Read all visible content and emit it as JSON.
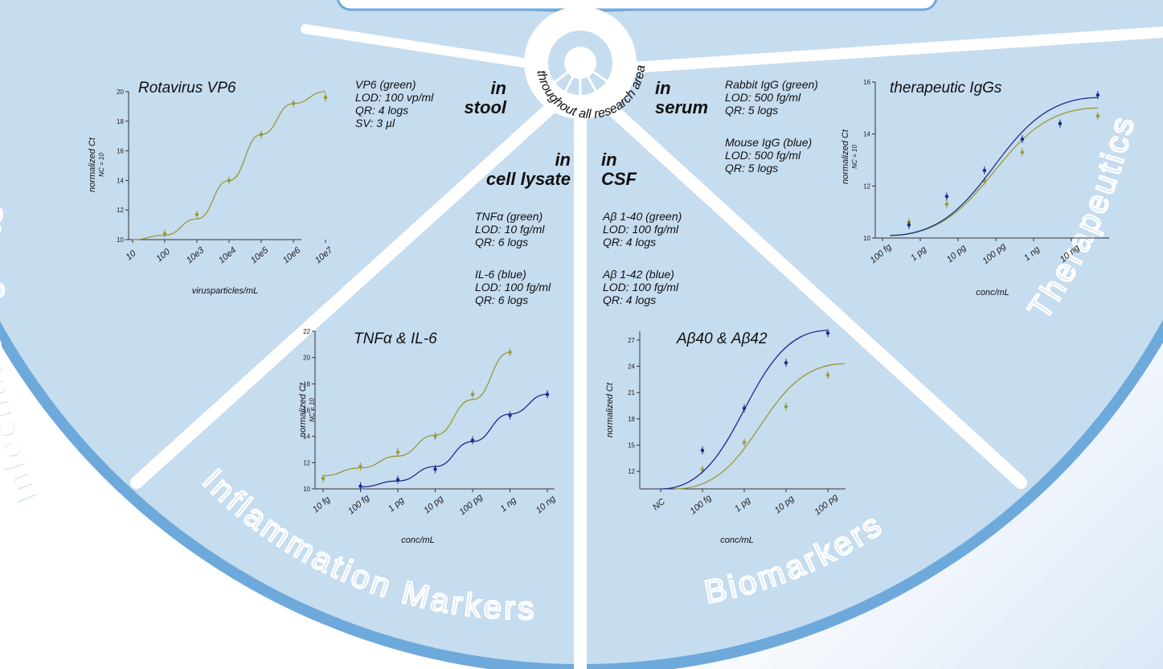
{
  "colors": {
    "sector_fill": "#c6dcef",
    "rim": "#6ea9dc",
    "divider": "#ffffff",
    "green": "#9a9a35",
    "blue": "#1a2d8a"
  },
  "center": {
    "text": "throughout all research areas",
    "icon": "cycle-arrow-icon"
  },
  "areas": {
    "infectious": "Infectious Agents",
    "inflammation": "Inflammation Markers",
    "biomarkers": "Biomarkers",
    "therapeutics": "Therapeutics"
  },
  "matrices": {
    "stool": {
      "in": "in",
      "name": "stool"
    },
    "lysate": {
      "in": "in",
      "name": "cell lysate"
    },
    "csf": {
      "in": "in",
      "name": "CSF"
    },
    "serum": {
      "in": "in",
      "name": "serum"
    }
  },
  "info": {
    "vp6": [
      "VP6 (green)",
      "LOD: 100 vp/ml",
      "QR: 4 logs",
      "SV: 3 µl"
    ],
    "tnf": [
      "TNFα (green)",
      "LOD: 10 fg/ml",
      "QR: 6 logs"
    ],
    "il6": [
      "IL-6 (blue)",
      "LOD: 100 fg/ml",
      "QR: 6 logs"
    ],
    "ab40": [
      "Aβ 1-40 (green)",
      "LOD: 100 fg/ml",
      "QR: 4 logs"
    ],
    "ab42": [
      "Aβ 1-42 (blue)",
      "LOD: 100 fg/ml",
      "QR: 4 logs"
    ],
    "rabbit": [
      "Rabbit IgG (green)",
      "LOD: 500 fg/ml",
      "QR: 5 logs"
    ],
    "mouse": [
      "Mouse IgG (blue)",
      "LOD: 500 fg/ml",
      "QR: 5 logs"
    ]
  },
  "chart_data": [
    {
      "id": "rota",
      "type": "line",
      "title": "Rotavirus VP6",
      "ylabel": "normalized Ct",
      "ysub": "NC = 10",
      "xlabel": "virusparticles/mL",
      "categories": [
        "10",
        "100",
        "10e3",
        "10e4",
        "10e5",
        "10e6",
        "10e7"
      ],
      "ylim": [
        10,
        20
      ],
      "yticks": [
        10,
        12,
        14,
        16,
        18,
        20
      ],
      "series": [
        {
          "color": "green",
          "points": [
            [
              1,
              10.4
            ],
            [
              2,
              11.7
            ],
            [
              3,
              14.0
            ],
            [
              4,
              17.1
            ],
            [
              5,
              19.2
            ],
            [
              6,
              19.6
            ]
          ],
          "fit": [
            [
              0,
              10.0
            ],
            [
              1,
              10.3
            ],
            [
              2,
              11.4
            ],
            [
              3,
              14.0
            ],
            [
              4,
              17.1
            ],
            [
              5,
              19.2
            ],
            [
              6,
              20.0
            ]
          ]
        }
      ]
    },
    {
      "id": "tnf",
      "type": "line",
      "title": "TNFα & IL-6",
      "ylabel": "normalized Ct",
      "ysub": "NC = 10",
      "xlabel": "conc/mL",
      "categories": [
        "10 fg",
        "100 fg",
        "1 pg",
        "10 pg",
        "100 pg",
        "1 ng",
        "10 ng"
      ],
      "ylim": [
        10,
        22
      ],
      "yticks": [
        10,
        12,
        14,
        16,
        18,
        20,
        22
      ],
      "series": [
        {
          "color": "green",
          "points": [
            [
              0,
              10.8
            ],
            [
              1,
              11.7
            ],
            [
              2,
              12.8
            ],
            [
              3,
              14.0
            ],
            [
              4,
              17.2
            ],
            [
              5,
              20.4
            ]
          ],
          "fit": [
            [
              0,
              11.0
            ],
            [
              1,
              11.6
            ],
            [
              2,
              12.5
            ],
            [
              3,
              14.1
            ],
            [
              4,
              16.8
            ],
            [
              5,
              20.4
            ]
          ]
        },
        {
          "color": "blue",
          "points": [
            [
              1,
              10.2
            ],
            [
              2,
              10.7
            ],
            [
              3,
              11.5
            ],
            [
              4,
              13.7
            ],
            [
              5,
              15.6
            ],
            [
              6,
              17.2
            ]
          ],
          "fit": [
            [
              1,
              10.15
            ],
            [
              2,
              10.6
            ],
            [
              3,
              11.7
            ],
            [
              4,
              13.6
            ],
            [
              5,
              15.7
            ],
            [
              6,
              17.2
            ]
          ]
        }
      ]
    },
    {
      "id": "ab",
      "type": "line",
      "title": "Aβ40 & Aβ42",
      "ylabel": "normalized Ct",
      "xlabel": "conc/mL",
      "categories": [
        "NC",
        "100 fg",
        "1 pg",
        "10 pg",
        "100 pg"
      ],
      "ylim": [
        10,
        28
      ],
      "yticks": [
        12,
        15,
        18,
        21,
        24,
        27
      ],
      "series": [
        {
          "color": "green",
          "points": [
            [
              1,
              12.2
            ],
            [
              2,
              15.3
            ],
            [
              3,
              19.4
            ],
            [
              4,
              23.0
            ]
          ],
          "fit": [
            [
              0.35,
              10.0
            ],
            [
              4.4,
              24.3
            ]
          ]
        },
        {
          "color": "blue",
          "points": [
            [
              1,
              14.4
            ],
            [
              2,
              19.2
            ],
            [
              3,
              24.4
            ],
            [
              4,
              27.8
            ]
          ],
          "fit": [
            [
              0,
              10.0
            ],
            [
              4,
              28.1
            ]
          ]
        }
      ]
    },
    {
      "id": "tx",
      "type": "line",
      "title": "therapeutic IgGs",
      "ylabel": "normalized Ct",
      "ysub": "NC = 10",
      "xlabel": "conc/mL",
      "categories": [
        "100 fg",
        "1 pg",
        "10 pg",
        "100 pg",
        "1 ng",
        "10 ng"
      ],
      "ylim": [
        10,
        16
      ],
      "yticks": [
        10,
        12,
        14,
        16
      ],
      "series": [
        {
          "color": "green",
          "points": [
            [
              0.7,
              10.6
            ],
            [
              1.7,
              11.3
            ],
            [
              2.7,
              12.2
            ],
            [
              3.7,
              13.3
            ],
            [
              4.7,
              14.4
            ],
            [
              5.7,
              14.7
            ]
          ],
          "fit": [
            [
              0.2,
              10.1
            ],
            [
              5.7,
              15.0
            ]
          ]
        },
        {
          "color": "blue",
          "points": [
            [
              0.7,
              10.5
            ],
            [
              1.7,
              11.6
            ],
            [
              2.7,
              12.6
            ],
            [
              3.7,
              13.8
            ],
            [
              4.7,
              14.4
            ],
            [
              5.7,
              15.5
            ]
          ],
          "fit": [
            [
              0.2,
              10.1
            ],
            [
              5.7,
              15.4
            ]
          ]
        }
      ]
    }
  ]
}
